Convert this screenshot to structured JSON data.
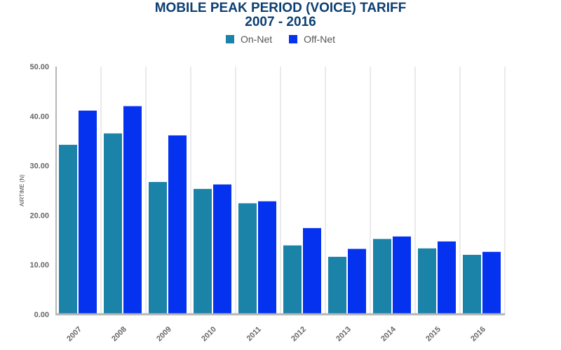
{
  "chart_data": {
    "type": "bar",
    "title_line1": "MOBILE PEAK PERIOD (VOICE) TARIFF",
    "title_line2": "2007 - 2016",
    "ylabel": "AIRTIME (N)",
    "xlabel": "",
    "ylim": [
      0,
      50
    ],
    "yticks": [
      "0.00",
      "10.00",
      "20.00",
      "30.00",
      "40.00",
      "50.00"
    ],
    "grid": true,
    "legend_position": "top-center",
    "categories": [
      "2007",
      "2008",
      "2009",
      "2010",
      "2011",
      "2012",
      "2013",
      "2014",
      "2015",
      "2016"
    ],
    "series": [
      {
        "name": "On-Net",
        "color": "#1b82a8",
        "values": [
          34.2,
          36.5,
          26.7,
          25.3,
          22.4,
          13.9,
          11.6,
          15.2,
          13.3,
          12.0
        ]
      },
      {
        "name": "Off-Net",
        "color": "#0432ef",
        "values": [
          41.1,
          42.0,
          36.1,
          26.2,
          22.8,
          17.4,
          13.2,
          15.7,
          14.7,
          12.6
        ]
      }
    ]
  }
}
